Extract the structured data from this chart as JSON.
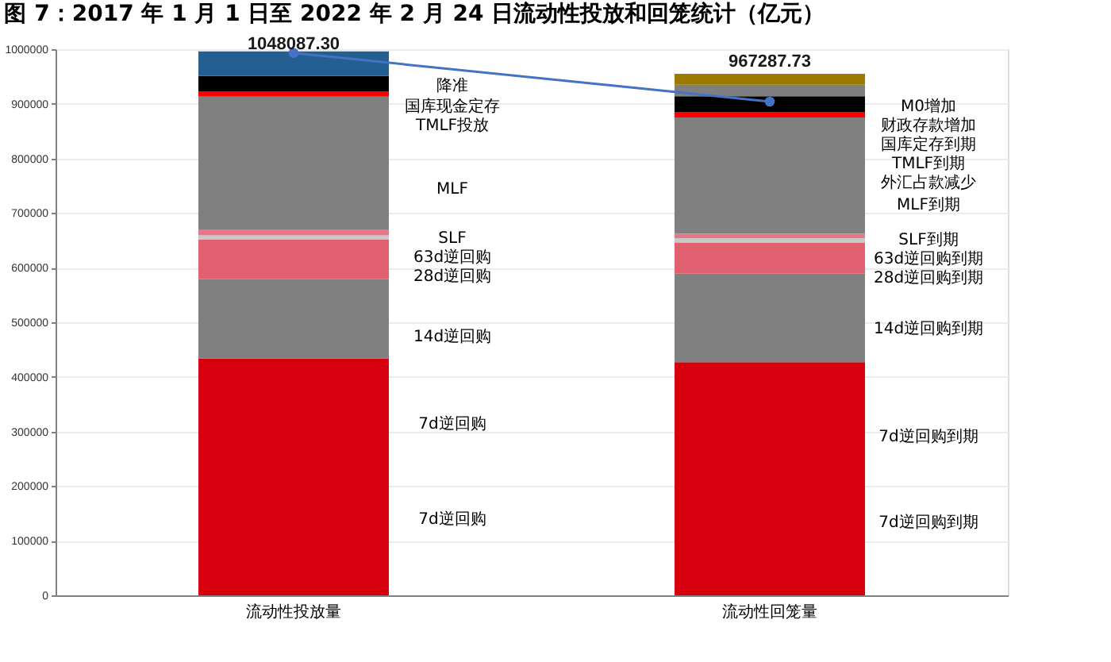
{
  "chart_data": {
    "type": "bar",
    "title": "图 7：2017 年 1 月 1 日至 2022 年 2 月 24 日流动性投放和回笼统计（亿元）",
    "categories": [
      "流动性投放量",
      "流动性回笼量"
    ],
    "stacked": true,
    "series": [
      {
        "color": "#d6000f",
        "values": [
          434000,
          427000
        ]
      },
      {
        "color": "#808080",
        "values": [
          145000,
          162000
        ]
      },
      {
        "color": "#e0606f",
        "values": [
          73000,
          57000
        ]
      },
      {
        "color": "#c8c8c8",
        "values": [
          7000,
          8000
        ]
      },
      {
        "color": "#e57788",
        "values": [
          10000,
          8000
        ]
      },
      {
        "color": "#808080",
        "values": [
          244000,
          213000
        ]
      },
      {
        "color": "#ff0000",
        "values": [
          10000,
          10000
        ]
      },
      {
        "color": "#000000",
        "values": [
          28000,
          29000
        ]
      },
      {
        "color": "#255e91",
        "values": [
          45000,
          null
        ]
      },
      {
        "color": "#7f7f7f",
        "values": [
          null,
          21000
        ]
      },
      {
        "color": "#9c7a00",
        "values": [
          null,
          20000
        ]
      },
      {
        "type": "line",
        "color": "#4472c4",
        "values": [
          993000,
          904000
        ]
      }
    ],
    "marker": "circle",
    "ylim": [
      0,
      1000000
    ],
    "yticks": [
      0,
      100000,
      200000,
      300000,
      400000,
      500000,
      600000,
      700000,
      800000,
      900000,
      1000000
    ],
    "grid": "y",
    "annotations": [
      "1048087.30",
      "967287.73",
      "降准",
      "国库现金定存",
      "TMLF投放",
      "MLF",
      "SLF",
      "63d逆回购",
      "28d逆回购",
      "14d逆回购",
      "7d逆回购",
      "7d逆回购",
      "M0增加",
      "财政存款增加",
      "国库定存到期",
      "TMLF到期",
      "外汇占款减少",
      "MLF到期",
      "SLF到期",
      "63d逆回购到期",
      "28d逆回购到期",
      "14d逆回购到期",
      "7d逆回购到期",
      "7d逆回购到期"
    ]
  }
}
